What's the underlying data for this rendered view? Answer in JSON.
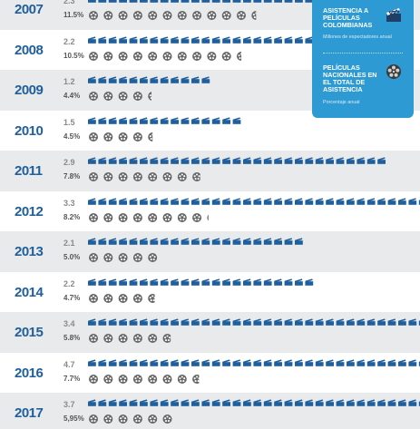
{
  "legend": {
    "attendance_title": "ASISTENCIA A PELÍCULAS COLOMBIANAS",
    "attendance_subtitle": "Millones de espectadores anual",
    "share_title": "PELÍCULAS NACIONALES EN EL TOTAL DE ASISTENCIA",
    "share_subtitle": "Porcentaje anual",
    "attendance_icon": "clapperboard-icon",
    "share_icon": "film-reel-icon"
  },
  "colors": {
    "year_text": "#1f5f9d",
    "clapper": "#1f5f9d",
    "reel": "#666666",
    "legend_bg": "#2e9ad3",
    "row_shade": "#e9eaeb"
  },
  "chart_data": {
    "type": "pictogram",
    "x_label": "",
    "categories": [
      "2007",
      "2008",
      "2009",
      "2010",
      "2011",
      "2012",
      "2013",
      "2014",
      "2015",
      "2016",
      "2017"
    ],
    "series": [
      {
        "name": "ASISTENCIA A PELÍCULAS COLOMBIANAS",
        "unit": "Millones de espectadores anual",
        "values": [
          2.3,
          2.2,
          1.2,
          1.5,
          2.9,
          3.3,
          2.1,
          2.2,
          3.4,
          4.7,
          3.7
        ],
        "labels": [
          "2.3",
          "2.2",
          "1.2",
          "1.5",
          "2.9",
          "3.3",
          "2.1",
          "2.2",
          "3.4",
          "4.7",
          "3.7"
        ]
      },
      {
        "name": "PELÍCULAS NACIONALES EN EL TOTAL DE ASISTENCIA",
        "unit": "Porcentaje anual",
        "values": [
          11.5,
          10.5,
          4.4,
          4.5,
          7.8,
          8.2,
          5.0,
          4.7,
          5.8,
          7.7,
          5.95
        ],
        "labels": [
          "11.5%",
          "10.5%",
          "4.4%",
          "4.5%",
          "7.8%",
          "8.2%",
          "5.0%",
          "4.7%",
          "5.8%",
          "7.7%",
          "5,95%"
        ]
      }
    ]
  }
}
